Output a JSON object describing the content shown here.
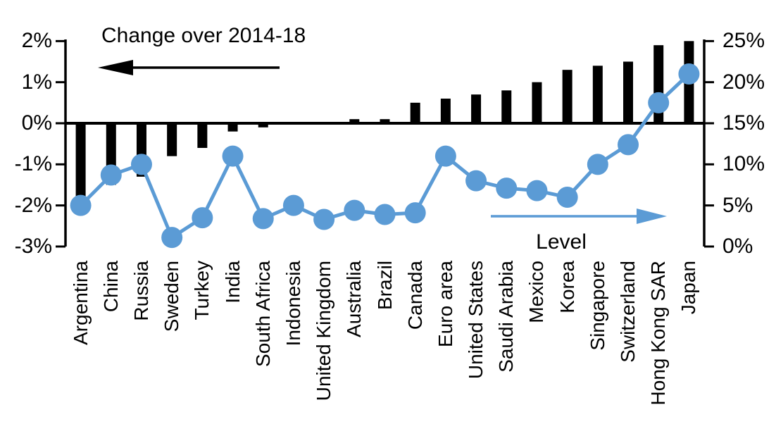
{
  "chart_data": {
    "type": "bar",
    "subtype": "dual-axis bar + line (markers)",
    "title": "",
    "categories": [
      "Argentina",
      "China",
      "Russia",
      "Sweden",
      "Turkey",
      "India",
      "South Africa",
      "Indonesia",
      "United Kingdom",
      "Australia",
      "Brazil",
      "Canada",
      "Euro area",
      "United States",
      "Saudi Arabia",
      "Mexico",
      "Korea",
      "Singapore",
      "Switzerland",
      "Hong Kong SAR",
      "Japan"
    ],
    "series": [
      {
        "name": "Change over 2014-18",
        "type": "bar",
        "axis": "left",
        "color": "#000000",
        "unit": "%",
        "values": [
          -1.8,
          -1.5,
          -1.3,
          -0.8,
          -0.6,
          -0.2,
          -0.1,
          0,
          0,
          0.1,
          0.1,
          0.5,
          0.6,
          0.7,
          0.8,
          1.0,
          1.3,
          1.4,
          1.5,
          1.9,
          2.0
        ]
      },
      {
        "name": "Level",
        "type": "line",
        "axis": "right",
        "color": "#5B9BD5",
        "unit": "%",
        "values": [
          5.0,
          8.7,
          10.0,
          1.1,
          3.5,
          11.0,
          3.4,
          5.0,
          3.3,
          4.4,
          3.9,
          4.1,
          11.0,
          8.0,
          7.1,
          6.8,
          6.0,
          10.0,
          12.4,
          17.5,
          21.0
        ]
      }
    ],
    "left_axis": {
      "ticks": [
        "2%",
        "1%",
        "0%",
        "-1%",
        "-2%",
        "-3%"
      ],
      "values": [
        2,
        1,
        0,
        -1,
        -2,
        -3
      ],
      "range": [
        -3,
        2
      ]
    },
    "right_axis": {
      "ticks": [
        "25%",
        "20%",
        "15%",
        "10%",
        "5%",
        "0%"
      ],
      "values": [
        25,
        20,
        15,
        10,
        5,
        0
      ],
      "range": [
        0,
        25
      ]
    },
    "annotations": [
      {
        "text": "Change over 2014-18",
        "arrow": "points-left-toward-left-axis",
        "color": "#000000"
      },
      {
        "text": "Level",
        "arrow": "points-right-toward-right-axis",
        "color": "#5B9BD5"
      }
    ],
    "grid": false,
    "legend_position": "none (in-plot annotations with arrows)",
    "xlabel": "",
    "ylabel": ""
  },
  "colors": {
    "bar": "#000000",
    "line": "#5B9BD5",
    "axis": "#000000",
    "background": "#FFFFFF",
    "text": "#000000"
  }
}
